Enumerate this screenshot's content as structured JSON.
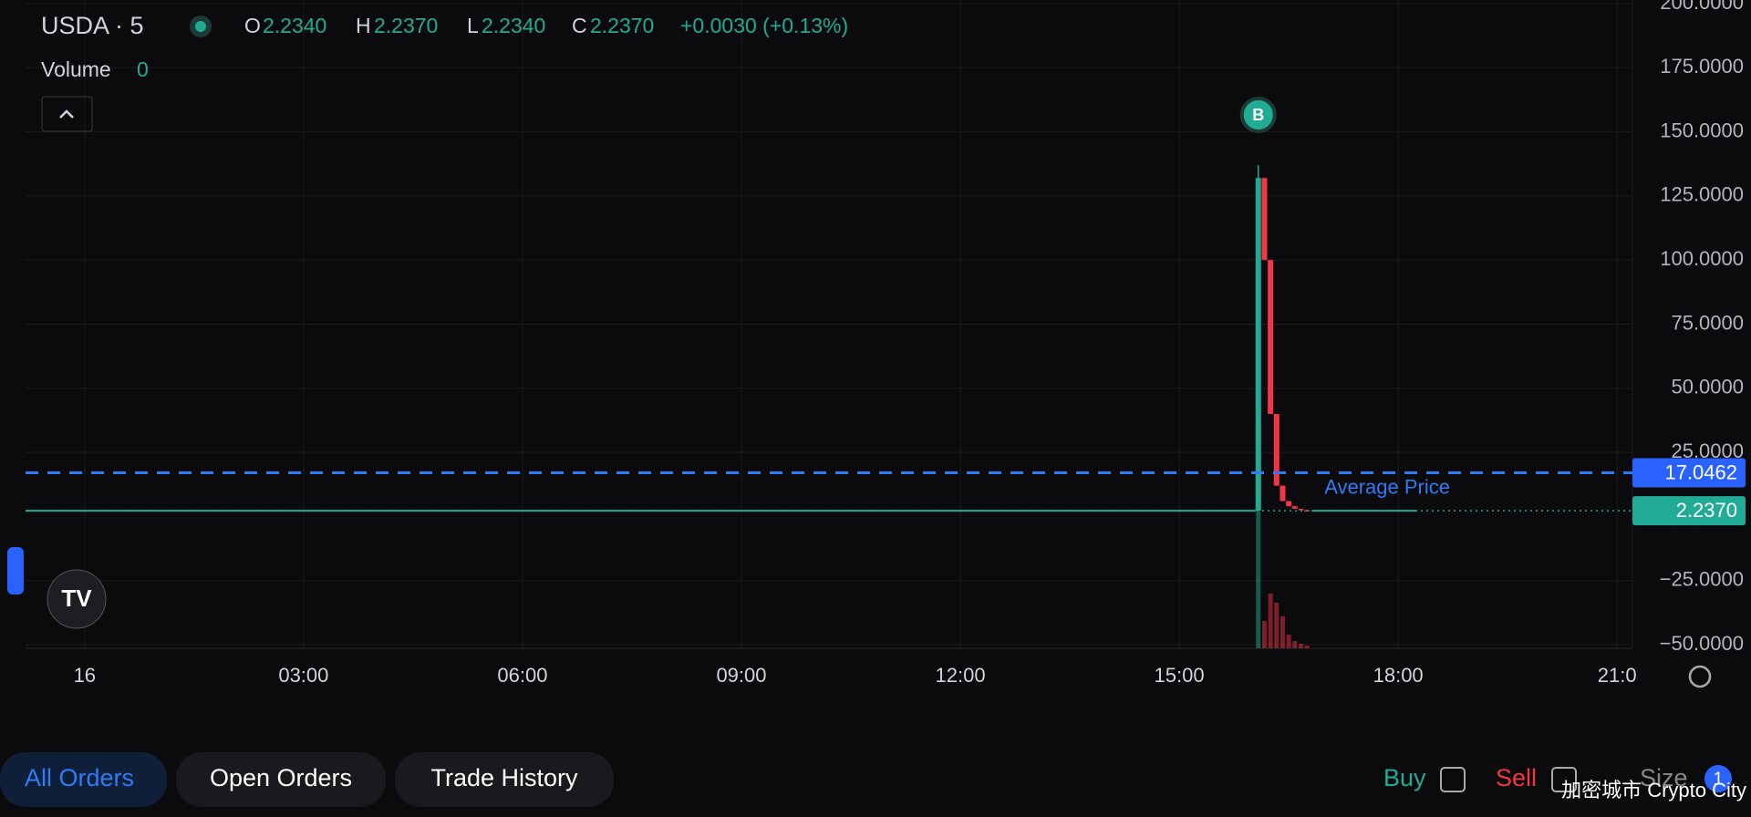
{
  "header": {
    "symbol": "USDA · 5",
    "o_label": "O",
    "o": "2.2340",
    "h_label": "H",
    "h": "2.2370",
    "l_label": "L",
    "l": "2.2340",
    "c_label": "C",
    "c": "2.2370",
    "change": "+0.0030 (+0.13%)",
    "volume_label": "Volume",
    "volume": "0"
  },
  "chart_data": {
    "type": "candlestick",
    "x": [
      16.083,
      16.167,
      16.25,
      16.333,
      16.417,
      16.5,
      16.583,
      16.667,
      16.75
    ],
    "open": [
      2.23,
      132,
      100,
      40,
      12,
      6,
      4,
      3,
      2.5
    ],
    "high": [
      137,
      132,
      100,
      40,
      12,
      6,
      4,
      3,
      2.5
    ],
    "low": [
      2.2,
      100,
      40,
      12,
      6,
      4,
      3,
      2.5,
      2.2
    ],
    "close": [
      132,
      100,
      40,
      12,
      6,
      4,
      3,
      2.5,
      2.3
    ],
    "volume": [
      150,
      30,
      60,
      50,
      35,
      15,
      8,
      5,
      3
    ],
    "lines": [
      {
        "x": [
          -0.81,
          16.05
        ],
        "values": [
          2.234,
          2.234
        ]
      },
      {
        "x": [
          16.83,
          18.25
        ],
        "values": [
          2.237,
          2.237
        ]
      }
    ],
    "up_color": "#22ab94",
    "down_color": "#f23645",
    "xlim": [
      -0.81,
      21.21
    ],
    "ylim": [
      -50,
      200
    ],
    "xticks": [
      {
        "value": 0,
        "label": "16"
      },
      {
        "value": 3,
        "label": "03:00"
      },
      {
        "value": 6,
        "label": "06:00"
      },
      {
        "value": 9,
        "label": "09:00"
      },
      {
        "value": 12,
        "label": "12:00"
      },
      {
        "value": 15,
        "label": "15:00"
      },
      {
        "value": 18,
        "label": "18:00"
      },
      {
        "value": 21,
        "label": "21:0"
      }
    ],
    "yticks": [
      {
        "value": 200,
        "label": "200.0000"
      },
      {
        "value": 175,
        "label": "175.0000"
      },
      {
        "value": 150,
        "label": "150.0000"
      },
      {
        "value": 125,
        "label": "125.0000"
      },
      {
        "value": 100,
        "label": "100.0000"
      },
      {
        "value": 75,
        "label": "75.0000"
      },
      {
        "value": 50,
        "label": "50.0000"
      },
      {
        "value": 25,
        "label": "25.0000"
      },
      {
        "value": -25,
        "label": "−25.0000"
      },
      {
        "value": -50,
        "label": "−50.0000"
      }
    ],
    "average_price": {
      "label": "Average Price",
      "value": 17.0462,
      "value_label": "17.0462"
    },
    "last_price": {
      "value": 2.237,
      "value_label": "2.2370"
    },
    "marker": {
      "label": "B",
      "x": 16.083
    },
    "grid": true
  },
  "tabs": [
    "All Orders",
    "Open Orders",
    "Trade History"
  ],
  "filters": {
    "buy": "Buy",
    "sell": "Sell",
    "size": "Size",
    "size_count": "1"
  },
  "watermark": "加密城市 Crypto City"
}
